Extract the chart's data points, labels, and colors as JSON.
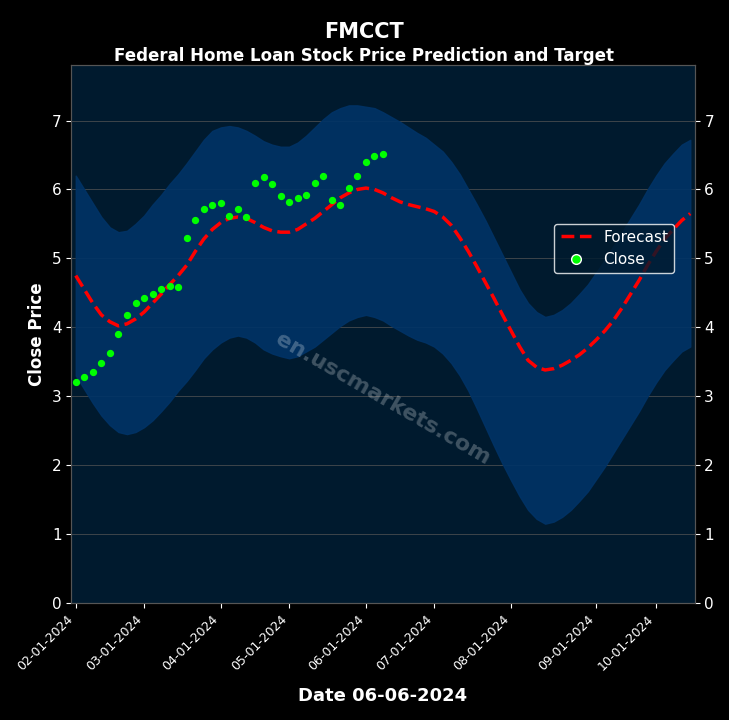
{
  "title": "FMCCT",
  "subtitle": "Federal Home Loan Stock Price Prediction and Target",
  "xlabel": "Date 06-06-2024",
  "ylabel": "Close Price",
  "background_color": "#000000",
  "plot_bg_color": "#001a2e",
  "ylim": [
    0,
    7.8
  ],
  "yticks": [
    0,
    1,
    2,
    3,
    4,
    5,
    6,
    7
  ],
  "watermark": "en.uscmarkets.com",
  "forecast_values": [
    4.75,
    4.55,
    4.35,
    4.18,
    4.08,
    4.02,
    4.05,
    4.12,
    4.22,
    4.35,
    4.48,
    4.62,
    4.75,
    4.9,
    5.1,
    5.28,
    5.42,
    5.52,
    5.58,
    5.6,
    5.58,
    5.52,
    5.45,
    5.4,
    5.38,
    5.38,
    5.42,
    5.5,
    5.58,
    5.68,
    5.78,
    5.88,
    5.95,
    6.0,
    6.02,
    6.0,
    5.95,
    5.88,
    5.82,
    5.78,
    5.75,
    5.72,
    5.68,
    5.6,
    5.48,
    5.3,
    5.1,
    4.88,
    4.65,
    4.42,
    4.18,
    3.95,
    3.72,
    3.52,
    3.42,
    3.38,
    3.4,
    3.45,
    3.52,
    3.6,
    3.7,
    3.82,
    3.95,
    4.1,
    4.28,
    4.48,
    4.68,
    4.9,
    5.1,
    5.28,
    5.42,
    5.55,
    5.65
  ],
  "close_x_indices": [
    0,
    1,
    2,
    3,
    4,
    5,
    6,
    7,
    8,
    9,
    10,
    11,
    12,
    13,
    14,
    15,
    16,
    17,
    18,
    19,
    20,
    21,
    22,
    23,
    24,
    25,
    26,
    27,
    28,
    29,
    30,
    31,
    32,
    33,
    34,
    35,
    36
  ],
  "close_values": [
    3.2,
    3.28,
    3.35,
    3.48,
    3.62,
    3.9,
    4.18,
    4.35,
    4.42,
    4.48,
    4.55,
    4.6,
    4.58,
    5.3,
    5.55,
    5.72,
    5.78,
    5.8,
    5.62,
    5.72,
    5.6,
    6.1,
    6.18,
    6.08,
    5.9,
    5.82,
    5.88,
    5.92,
    6.1,
    6.2,
    5.85,
    5.78,
    6.02,
    6.2,
    6.4,
    6.48,
    6.52
  ],
  "upper_band": [
    6.2,
    6.0,
    5.8,
    5.6,
    5.45,
    5.38,
    5.4,
    5.5,
    5.62,
    5.78,
    5.92,
    6.08,
    6.22,
    6.38,
    6.55,
    6.72,
    6.85,
    6.9,
    6.92,
    6.9,
    6.85,
    6.78,
    6.7,
    6.65,
    6.62,
    6.62,
    6.68,
    6.78,
    6.9,
    7.02,
    7.12,
    7.18,
    7.22,
    7.22,
    7.2,
    7.18,
    7.12,
    7.05,
    6.98,
    6.9,
    6.82,
    6.75,
    6.65,
    6.55,
    6.4,
    6.22,
    6.0,
    5.78,
    5.55,
    5.3,
    5.05,
    4.8,
    4.55,
    4.35,
    4.22,
    4.15,
    4.18,
    4.25,
    4.35,
    4.48,
    4.62,
    4.8,
    4.98,
    5.18,
    5.38,
    5.58,
    5.78,
    6.0,
    6.2,
    6.38,
    6.52,
    6.65,
    6.72
  ],
  "lower_band": [
    3.3,
    3.1,
    2.9,
    2.72,
    2.58,
    2.48,
    2.45,
    2.48,
    2.55,
    2.65,
    2.78,
    2.92,
    3.08,
    3.22,
    3.38,
    3.55,
    3.68,
    3.78,
    3.85,
    3.88,
    3.85,
    3.78,
    3.68,
    3.62,
    3.58,
    3.55,
    3.58,
    3.65,
    3.72,
    3.82,
    3.92,
    4.02,
    4.1,
    4.15,
    4.18,
    4.15,
    4.1,
    4.02,
    3.95,
    3.88,
    3.82,
    3.78,
    3.72,
    3.62,
    3.48,
    3.3,
    3.08,
    2.82,
    2.55,
    2.28,
    2.02,
    1.78,
    1.55,
    1.35,
    1.22,
    1.15,
    1.18,
    1.25,
    1.35,
    1.48,
    1.62,
    1.8,
    1.98,
    2.18,
    2.38,
    2.58,
    2.78,
    3.0,
    3.2,
    3.38,
    3.52,
    3.65,
    3.72
  ],
  "xtick_labels": [
    "02-01-2024",
    "03-01-2024",
    "04-01-2024",
    "05-01-2024",
    "06-01-2024",
    "07-01-2024",
    "08-01-2024",
    "09-01-2024",
    "10-01-2024"
  ],
  "xtick_positions": [
    0,
    8,
    17,
    25,
    34,
    42,
    51,
    61,
    68
  ]
}
